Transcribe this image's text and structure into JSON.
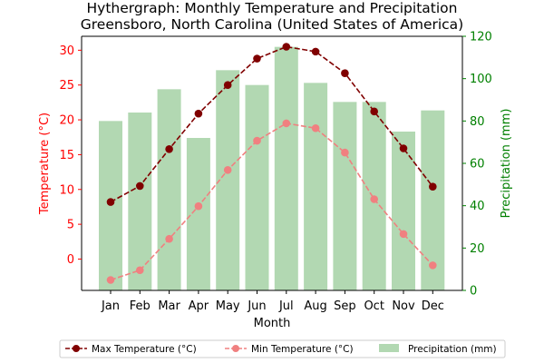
{
  "chart_data": {
    "type": "bar",
    "title_line1": "Hythergraph: Monthly Temperature and Precipitation",
    "title_line2": "Greensboro, North Carolina (United States of America)",
    "xlabel": "Month",
    "ylabel_left": "Temperature (°C)",
    "ylabel_right": "Precipitation (mm)",
    "categories": [
      "Jan",
      "Feb",
      "Mar",
      "Apr",
      "May",
      "Jun",
      "Jul",
      "Aug",
      "Sep",
      "Oct",
      "Nov",
      "Dec"
    ],
    "ylim_left": [
      -4.5,
      32
    ],
    "ylim_right": [
      0,
      120
    ],
    "yticks_left": [
      0,
      5,
      10,
      15,
      20,
      25,
      30
    ],
    "yticks_right": [
      0,
      20,
      40,
      60,
      80,
      100,
      120
    ],
    "series": [
      {
        "name": "Max Temperature (°C)",
        "type": "line",
        "axis": "left",
        "color": "#800000",
        "values": [
          8.2,
          10.5,
          15.8,
          20.9,
          25.0,
          28.8,
          30.5,
          29.8,
          26.7,
          21.2,
          15.9,
          10.4
        ]
      },
      {
        "name": "Min Temperature (°C)",
        "type": "line",
        "axis": "left",
        "color": "#f08080",
        "values": [
          -3.0,
          -1.6,
          2.9,
          7.6,
          12.8,
          17.0,
          19.5,
          18.8,
          15.3,
          8.6,
          3.6,
          -0.9
        ]
      },
      {
        "name": "Precipitation (mm)",
        "type": "bar",
        "axis": "right",
        "color": "#b2d8b2",
        "values": [
          80,
          84,
          95,
          72,
          104,
          97,
          115,
          98,
          89,
          89,
          75,
          85
        ]
      }
    ],
    "legend_position": "bottom",
    "grid": false
  },
  "colors": {
    "left_axis": "#ff0000",
    "right_axis": "#008000",
    "max_line": "#800000",
    "min_line": "#f08080",
    "bars": "#b2d8b2"
  }
}
